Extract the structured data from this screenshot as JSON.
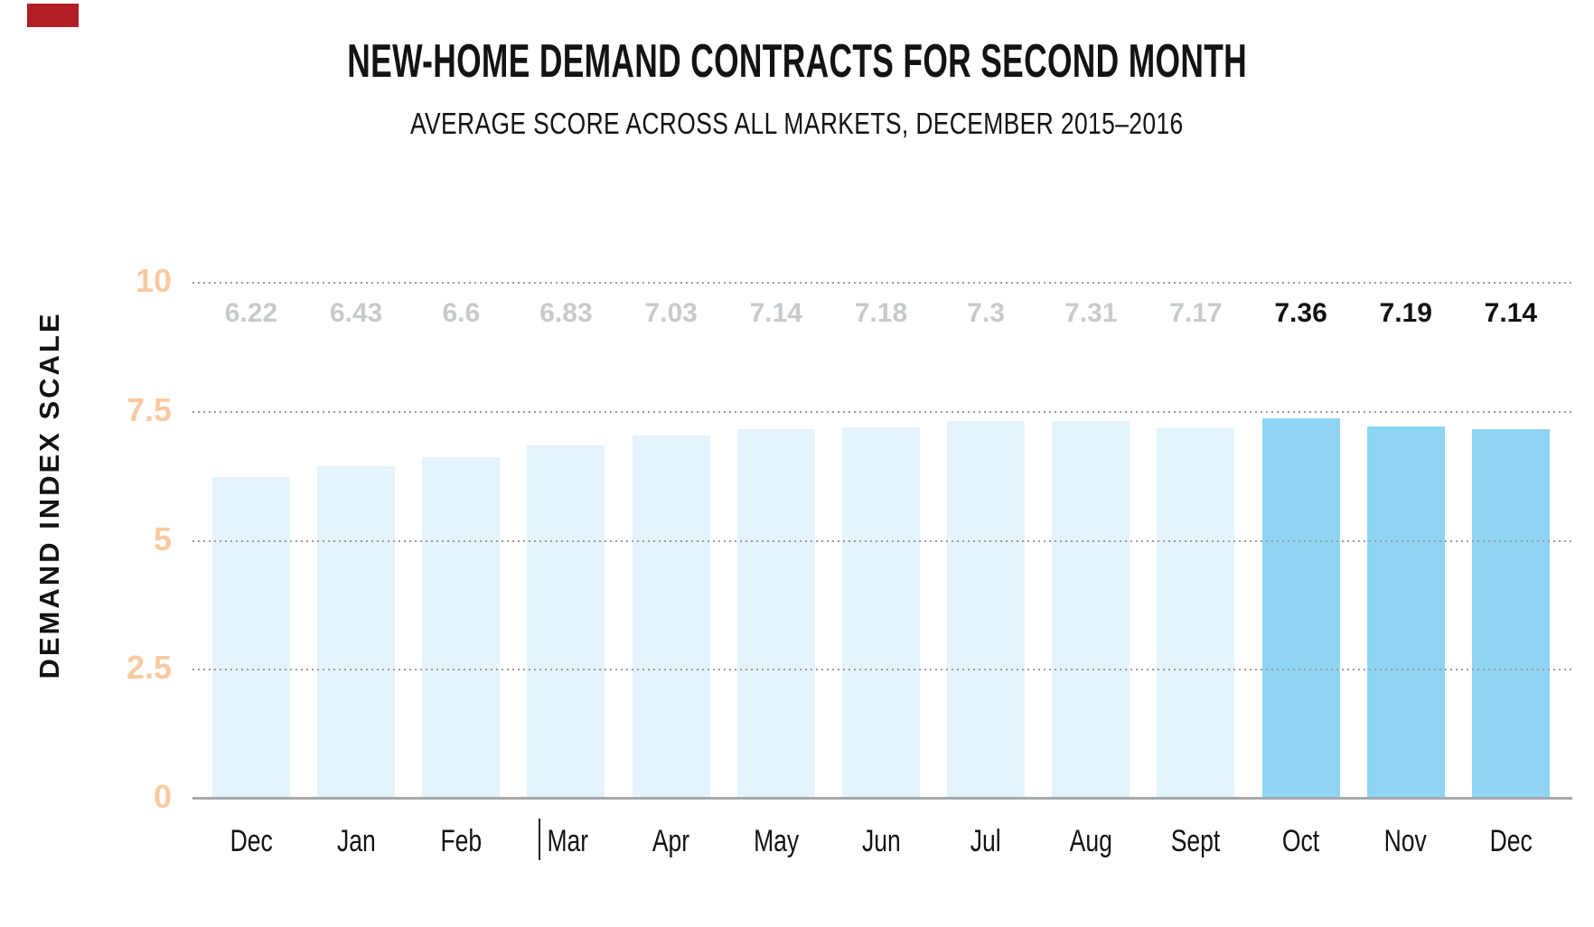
{
  "marker": {
    "color": "#b01e23"
  },
  "header": {
    "title": "NEW-HOME DEMAND CONTRACTS FOR SECOND MONTH",
    "subtitle": "AVERAGE SCORE ACROSS ALL MARKETS, DECEMBER 2015–2016"
  },
  "y_axis": {
    "label": "DEMAND INDEX SCALE",
    "ticks": [
      {
        "label": "10",
        "value": 10
      },
      {
        "label": "7.5",
        "value": 7.5
      },
      {
        "label": "5",
        "value": 5
      },
      {
        "label": "2.5",
        "value": 2.5
      },
      {
        "label": "0",
        "value": 0
      }
    ]
  },
  "chart_data": {
    "type": "bar",
    "title": "NEW-HOME DEMAND CONTRACTS FOR SECOND MONTH",
    "subtitle": "AVERAGE SCORE ACROSS ALL MARKETS, DECEMBER 2015–2016",
    "xlabel": "",
    "ylabel": "DEMAND INDEX SCALE",
    "ylim": [
      0,
      10
    ],
    "yticks": [
      0,
      2.5,
      5,
      7.5,
      10
    ],
    "grid": "dotted horizontal gridlines at 2.5, 5, 7.5, 10; solid baseline at 0",
    "legend": "none",
    "categories": [
      "Dec",
      "Jan",
      "Feb",
      "Mar",
      "Apr",
      "May",
      "Jun",
      "Jul",
      "Aug",
      "Sept",
      "Oct",
      "Nov",
      "Dec"
    ],
    "values": [
      6.22,
      6.43,
      6.6,
      6.83,
      7.03,
      7.14,
      7.18,
      7.3,
      7.31,
      7.17,
      7.36,
      7.19,
      7.14
    ],
    "value_labels": [
      "6.22",
      "6.43",
      "6.6",
      "6.83",
      "7.03",
      "7.14",
      "7.18",
      "7.3",
      "7.31",
      "7.17",
      "7.36",
      "7.19",
      "7.14"
    ],
    "emphasized_indices": [
      10,
      11,
      12
    ],
    "bar_color_default": "#e4f3fc",
    "bar_color_emphasized": "#8fd5f3",
    "value_label_color_default": "#c7cacc",
    "value_label_color_emphasized": "#111111"
  },
  "colors": {
    "tick_label": "#f9c9a0",
    "axis_line": "#a6aaad",
    "gridline": "#9b9b9b",
    "text": "#131313"
  }
}
